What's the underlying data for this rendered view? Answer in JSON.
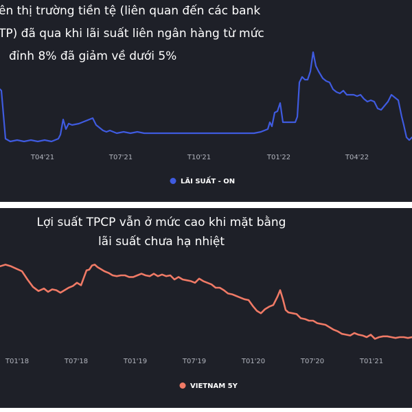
{
  "chart_data": [
    {
      "type": "line",
      "title_lines": [
        "ên thị trường tiền tệ (liên quan đến các bank",
        "TP) đã qua khi lãi suất liên ngân hàng từ mức",
        "đỉnh 8% đã giảm về dưới 5%"
      ],
      "tick_labels": [
        "T04'21",
        "T07'21",
        "T10'21",
        "T01'22",
        "T04'22"
      ],
      "legend": {
        "position": "bottom-center",
        "entries": [
          {
            "name": "LÃI SUẤT - ON",
            "color": "#3f5be0"
          }
        ]
      },
      "grid": false,
      "ylim": [
        0,
        8
      ],
      "series": [
        {
          "name": "LÃI SUẤT - ON",
          "color": "#3f5be0",
          "x": [
            0,
            2,
            8,
            15,
            25,
            35,
            45,
            55,
            65,
            75,
            85,
            88,
            92,
            96,
            100,
            105,
            115,
            125,
            130,
            135,
            140,
            145,
            150,
            155,
            160,
            170,
            180,
            190,
            200,
            210,
            220,
            230,
            240,
            250,
            260,
            270,
            280,
            290,
            300,
            310,
            320,
            330,
            340,
            350,
            360,
            370,
            380,
            385,
            390,
            393,
            396,
            400,
            404,
            408,
            412,
            415,
            420,
            425,
            430,
            433,
            436,
            440,
            444,
            448,
            452,
            456,
            460,
            464,
            470,
            475,
            480,
            485,
            490,
            495,
            500,
            505,
            510,
            515,
            520,
            525,
            530,
            535,
            540,
            545,
            550,
            555,
            560,
            565,
            570,
            575,
            580,
            585,
            588,
            592,
            596,
            600
          ],
          "y": [
            5.0,
            4.9,
            1.4,
            1.2,
            1.3,
            1.2,
            1.3,
            1.2,
            1.3,
            1.2,
            1.4,
            1.7,
            2.8,
            2.1,
            2.5,
            2.4,
            2.5,
            2.7,
            2.8,
            2.9,
            2.4,
            2.2,
            2.0,
            1.9,
            2.0,
            1.8,
            1.9,
            1.8,
            1.9,
            1.8,
            1.8,
            1.8,
            1.8,
            1.8,
            1.8,
            1.8,
            1.8,
            1.8,
            1.8,
            1.8,
            1.8,
            1.8,
            1.8,
            1.8,
            1.8,
            1.8,
            1.9,
            2.0,
            2.1,
            2.6,
            2.3,
            3.3,
            3.4,
            4.0,
            2.6,
            2.6,
            2.6,
            2.6,
            2.6,
            3.0,
            5.5,
            5.9,
            5.7,
            5.7,
            6.3,
            7.7,
            6.7,
            6.3,
            5.8,
            5.6,
            5.5,
            5.0,
            4.8,
            4.7,
            4.9,
            4.6,
            4.6,
            4.6,
            4.5,
            4.6,
            4.3,
            4.1,
            4.2,
            4.1,
            3.6,
            3.5,
            3.8,
            4.1,
            4.6,
            4.4,
            4.2,
            3.0,
            2.4,
            1.5,
            1.3,
            1.5
          ]
        }
      ]
    },
    {
      "type": "line",
      "title_lines": [
        "Lợi suất TPCP vẫn ở mức cao khi mặt bằng",
        "lãi suất chưa hạ nhiệt"
      ],
      "tick_labels": [
        "T01'18",
        "T07'18",
        "T01'19",
        "T07'19",
        "T01'20",
        "T07'20",
        "T01'21"
      ],
      "legend": {
        "position": "bottom-center",
        "entries": [
          {
            "name": "VIETNAM 5Y",
            "color": "#f07a66"
          }
        ]
      },
      "grid": false,
      "ylim": [
        0,
        10
      ],
      "series": [
        {
          "name": "VIETNAM 5Y",
          "color": "#f07a66",
          "x": [
            0,
            8,
            16,
            24,
            32,
            40,
            48,
            56,
            64,
            70,
            76,
            82,
            88,
            94,
            100,
            106,
            112,
            118,
            122,
            126,
            130,
            134,
            138,
            142,
            146,
            152,
            158,
            164,
            170,
            176,
            182,
            188,
            194,
            200,
            206,
            212,
            218,
            224,
            230,
            236,
            242,
            248,
            254,
            260,
            266,
            272,
            278,
            284,
            290,
            296,
            302,
            308,
            314,
            320,
            326,
            332,
            338,
            344,
            350,
            356,
            362,
            368,
            374,
            380,
            386,
            392,
            398,
            404,
            408,
            412,
            416,
            420,
            426,
            432,
            438,
            444,
            450,
            456,
            462,
            468,
            474,
            480,
            486,
            492,
            498,
            504,
            510,
            516,
            522,
            528,
            534,
            540,
            546,
            552,
            558,
            564,
            570,
            576,
            582,
            588,
            594,
            600
          ],
          "y": [
            9.6,
            9.8,
            9.6,
            9.3,
            9.0,
            8.0,
            7.1,
            6.6,
            6.9,
            6.5,
            6.8,
            6.7,
            6.4,
            6.7,
            7.0,
            7.2,
            7.6,
            7.3,
            8.2,
            9.1,
            9.2,
            9.7,
            9.8,
            9.5,
            9.3,
            9.0,
            8.8,
            8.5,
            8.4,
            8.5,
            8.5,
            8.3,
            8.3,
            8.5,
            8.7,
            8.5,
            8.4,
            8.7,
            8.4,
            8.6,
            8.4,
            8.5,
            8.0,
            8.3,
            8.0,
            7.9,
            7.8,
            7.6,
            8.1,
            7.8,
            7.6,
            7.4,
            7.0,
            7.0,
            6.7,
            6.3,
            6.2,
            6.0,
            5.8,
            5.6,
            5.5,
            4.8,
            4.2,
            3.9,
            4.4,
            4.7,
            4.9,
            5.9,
            6.7,
            5.6,
            4.3,
            4.0,
            3.9,
            3.8,
            3.3,
            3.2,
            3.0,
            3.0,
            2.7,
            2.6,
            2.5,
            2.2,
            1.9,
            1.7,
            1.4,
            1.3,
            1.2,
            1.5,
            1.3,
            1.2,
            1.0,
            1.3,
            0.8,
            1.0,
            1.1,
            1.1,
            1.0,
            0.9,
            1.0,
            1.0,
            0.9,
            1.0
          ]
        }
      ]
    }
  ]
}
